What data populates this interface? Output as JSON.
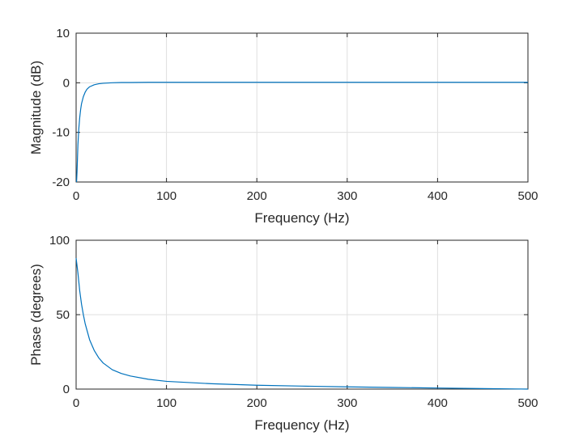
{
  "chart_data": [
    {
      "type": "line",
      "xlabel": "Frequency (Hz)",
      "ylabel": "Magnitude (dB)",
      "xlim": [
        0,
        500
      ],
      "ylim": [
        -20,
        10
      ],
      "xticks": [
        0,
        100,
        200,
        300,
        400,
        500
      ],
      "yticks": [
        -20,
        -10,
        0,
        10
      ],
      "grid": true,
      "line_color": "#0072bd",
      "series": [
        {
          "x": [
            0.5,
            1,
            2,
            3,
            4,
            5,
            6,
            8,
            10,
            12,
            15,
            20,
            25,
            30,
            40,
            50,
            60,
            80,
            100,
            150,
            200,
            250,
            300,
            350,
            400,
            450,
            500
          ],
          "y": [
            -20,
            -18,
            -12.5,
            -9.2,
            -7.0,
            -5.4,
            -4.2,
            -2.8,
            -1.9,
            -1.3,
            -0.8,
            -0.4,
            -0.2,
            -0.1,
            0.0,
            0.05,
            0.05,
            0.1,
            0.1,
            0.1,
            0.1,
            0.1,
            0.1,
            0.1,
            0.1,
            0.1,
            0.1
          ]
        }
      ]
    },
    {
      "type": "line",
      "xlabel": "Frequency (Hz)",
      "ylabel": "Phase (degrees)",
      "xlim": [
        0,
        500
      ],
      "ylim": [
        0,
        100
      ],
      "xticks": [
        0,
        100,
        200,
        300,
        400,
        500
      ],
      "yticks": [
        0,
        50,
        100
      ],
      "grid": true,
      "line_color": "#0072bd",
      "series": [
        {
          "x": [
            0,
            2,
            4,
            6,
            8,
            10,
            15,
            20,
            25,
            30,
            40,
            50,
            60,
            80,
            100,
            150,
            200,
            250,
            300,
            350,
            400,
            450,
            500
          ],
          "y": [
            88,
            78,
            66,
            57,
            50,
            44,
            33,
            26,
            21,
            17.5,
            13,
            10.5,
            8.8,
            6.6,
            5.2,
            3.6,
            2.6,
            2.0,
            1.5,
            1.1,
            0.7,
            0.35,
            0
          ]
        }
      ]
    }
  ]
}
